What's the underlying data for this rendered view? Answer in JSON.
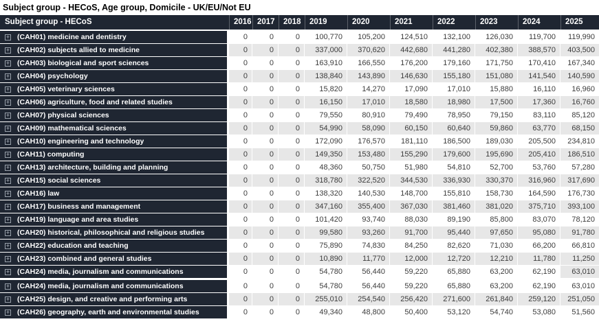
{
  "page": {
    "title": "Subject group - HECoS, Age group, Domicile - UK/EU/Not EU"
  },
  "colors": {
    "header_bg": "#1f2632",
    "band_gray": "#e7e7e7",
    "value_text": "#3c3c3c"
  },
  "table": {
    "row_header": "Subject group - HECoS",
    "expand_icon": "+",
    "columns": [
      "2016",
      "2017",
      "2018",
      "2019",
      "2020",
      "2021",
      "2022",
      "2023",
      "2024",
      "2025"
    ],
    "rows": [
      {
        "label": "(CAH01) medicine and dentistry",
        "values": [
          "0",
          "0",
          "0",
          "100,770",
          "105,200",
          "124,510",
          "132,100",
          "126,030",
          "119,700",
          "119,990"
        ]
      },
      {
        "label": "(CAH02) subjects allied to medicine",
        "values": [
          "0",
          "0",
          "0",
          "337,000",
          "370,620",
          "442,680",
          "441,280",
          "402,380",
          "388,570",
          "403,500"
        ]
      },
      {
        "label": "(CAH03) biological and sport sciences",
        "values": [
          "0",
          "0",
          "0",
          "163,910",
          "166,550",
          "176,200",
          "179,160",
          "171,750",
          "170,410",
          "167,340"
        ]
      },
      {
        "label": "(CAH04) psychology",
        "values": [
          "0",
          "0",
          "0",
          "138,840",
          "143,890",
          "146,630",
          "155,180",
          "151,080",
          "141,540",
          "140,590"
        ]
      },
      {
        "label": "(CAH05) veterinary sciences",
        "values": [
          "0",
          "0",
          "0",
          "15,820",
          "14,270",
          "17,090",
          "17,010",
          "15,880",
          "16,110",
          "16,960"
        ]
      },
      {
        "label": "(CAH06) agriculture, food and related studies",
        "values": [
          "0",
          "0",
          "0",
          "16,150",
          "17,010",
          "18,580",
          "18,980",
          "17,500",
          "17,360",
          "16,760"
        ]
      },
      {
        "label": "(CAH07) physical sciences",
        "values": [
          "0",
          "0",
          "0",
          "79,550",
          "80,910",
          "79,490",
          "78,950",
          "79,150",
          "83,110",
          "85,120"
        ]
      },
      {
        "label": "(CAH09) mathematical sciences",
        "values": [
          "0",
          "0",
          "0",
          "54,990",
          "58,090",
          "60,150",
          "60,640",
          "59,860",
          "63,770",
          "68,150"
        ]
      },
      {
        "label": "(CAH10) engineering and technology",
        "values": [
          "0",
          "0",
          "0",
          "172,090",
          "176,570",
          "181,110",
          "186,500",
          "189,030",
          "205,500",
          "234,810"
        ]
      },
      {
        "label": "(CAH11) computing",
        "values": [
          "0",
          "0",
          "0",
          "149,350",
          "153,480",
          "155,290",
          "179,600",
          "195,690",
          "205,410",
          "186,510"
        ]
      },
      {
        "label": "(CAH13) architecture, building and planning",
        "values": [
          "0",
          "0",
          "0",
          "48,360",
          "50,750",
          "51,980",
          "54,810",
          "52,700",
          "53,760",
          "57,280"
        ]
      },
      {
        "label": "(CAH15) social sciences",
        "values": [
          "0",
          "0",
          "0",
          "318,780",
          "322,520",
          "344,530",
          "336,930",
          "330,370",
          "316,960",
          "317,690"
        ]
      },
      {
        "label": "(CAH16) law",
        "values": [
          "0",
          "0",
          "0",
          "138,320",
          "140,530",
          "148,700",
          "155,810",
          "158,730",
          "164,590",
          "176,730"
        ]
      },
      {
        "label": "(CAH17) business and management",
        "values": [
          "0",
          "0",
          "0",
          "347,160",
          "355,400",
          "367,030",
          "381,460",
          "381,020",
          "375,710",
          "393,100"
        ]
      },
      {
        "label": "(CAH19) language and area studies",
        "values": [
          "0",
          "0",
          "0",
          "101,420",
          "93,740",
          "88,030",
          "89,190",
          "85,800",
          "83,070",
          "78,120"
        ]
      },
      {
        "label": "(CAH20) historical, philosophical and religious studies",
        "values": [
          "0",
          "0",
          "0",
          "99,580",
          "93,260",
          "91,700",
          "95,440",
          "97,650",
          "95,080",
          "91,780"
        ]
      },
      {
        "label": "(CAH22) education and teaching",
        "values": [
          "0",
          "0",
          "0",
          "75,890",
          "74,830",
          "84,250",
          "82,620",
          "71,030",
          "66,200",
          "66,810"
        ]
      },
      {
        "label": "(CAH23) combined and general studies",
        "values": [
          "0",
          "0",
          "0",
          "10,890",
          "11,770",
          "12,000",
          "12,720",
          "12,210",
          "11,780",
          "11,250"
        ]
      },
      {
        "label": "(CAH24) media, journalism and communications",
        "values": [
          "0",
          "0",
          "0",
          "54,780",
          "56,440",
          "59,220",
          "65,880",
          "63,200",
          "62,190",
          "63,010"
        ]
      },
      {
        "label": "(CAH24) media, journalism and communications",
        "values": [
          "0",
          "0",
          "0",
          "54,780",
          "56,440",
          "59,220",
          "65,880",
          "63,200",
          "62,190",
          "63,010"
        ]
      },
      {
        "label": "(CAH25) design, and creative and performing arts",
        "values": [
          "0",
          "0",
          "0",
          "255,010",
          "254,540",
          "256,420",
          "271,600",
          "261,840",
          "259,120",
          "251,050"
        ]
      },
      {
        "label": "(CAH26) geography, earth and environmental studies",
        "values": [
          "0",
          "0",
          "0",
          "49,340",
          "48,800",
          "50,400",
          "53,120",
          "54,740",
          "53,080",
          "51,560"
        ]
      }
    ]
  }
}
